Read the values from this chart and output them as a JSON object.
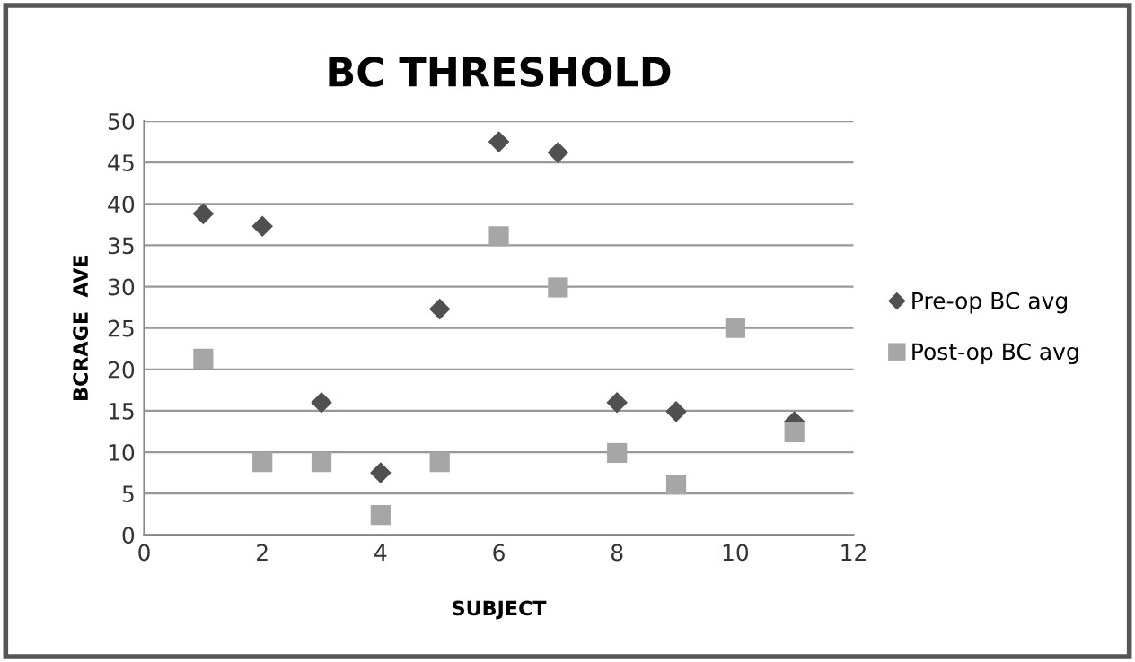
{
  "chart_data": {
    "type": "scatter",
    "title": "BC THRESHOLD",
    "xlabel": "SUBJECT",
    "ylabel": "BCRAGE  AVE",
    "x": [
      1,
      2,
      3,
      4,
      5,
      6,
      7,
      8,
      9,
      10,
      11
    ],
    "series": [
      {
        "name": "Pre-op BC avg",
        "color": "#505050",
        "marker": "diamond",
        "values": [
          38.8,
          37.3,
          16.0,
          7.5,
          27.3,
          47.5,
          46.2,
          16.0,
          14.9,
          null,
          13.7
        ]
      },
      {
        "name": "Post-op BC avg",
        "color": "#a6a6a6",
        "marker": "square",
        "values": [
          21.3,
          8.8,
          8.8,
          2.4,
          8.8,
          36.1,
          29.9,
          9.9,
          6.1,
          25.0,
          12.4
        ]
      }
    ],
    "xlim": [
      0,
      12
    ],
    "xticks": [
      0,
      2,
      4,
      6,
      8,
      10,
      12
    ],
    "ylim": [
      0,
      50
    ],
    "yticks": [
      0,
      5,
      10,
      15,
      20,
      25,
      30,
      35,
      40,
      45,
      50
    ],
    "grid": "y",
    "legend": "right"
  }
}
